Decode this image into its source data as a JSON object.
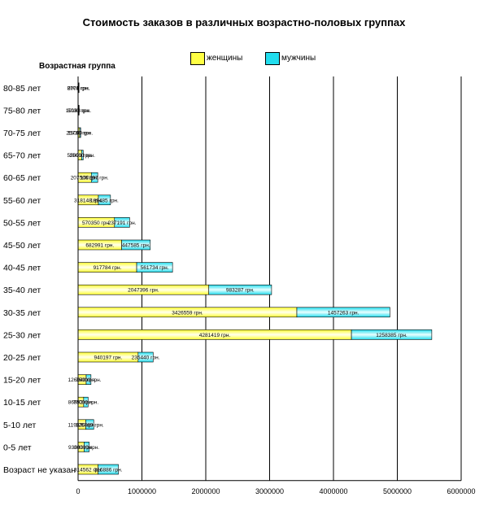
{
  "chart_data": {
    "type": "bar",
    "orientation": "horizontal",
    "stacked": true,
    "title": "Стоимость заказов в различных возрастно-половых группах",
    "ylabel": "Возрастная группа",
    "xlabel": "",
    "xlim": [
      0,
      6000000
    ],
    "x_ticks": [
      "0",
      "1000000",
      "2000000",
      "3000000",
      "4000000",
      "5000000",
      "6000000"
    ],
    "grid": true,
    "legend_position": "top",
    "value_unit": "грн.",
    "categories": [
      "80-85 лет",
      "75-80 лет",
      "70-75 лет",
      "65-70 лет",
      "60-65 лет",
      "55-60 лет",
      "50-55 лет",
      "45-50 лет",
      "40-45 лет",
      "35-40 лет",
      "30-35 лет",
      "25-30 лет",
      "20-25 лет",
      "15-20 лет",
      "10-15 лет",
      "5-10 лет",
      "0-5 лет",
      "Возраст не указан"
    ],
    "series": [
      {
        "name": "женщины",
        "color": "#ffff44",
        "values": [
          8771,
          10163,
          25730,
          55091,
          207506,
          318148,
          570350,
          682991,
          917784,
          2047396,
          3426559,
          4281419,
          940197,
          126940,
          86992,
          119830,
          93383,
          314562
        ]
      },
      {
        "name": "мужчины",
        "color": "#22ddee",
        "values": [
          2000,
          5000,
          15000,
          25000,
          100297,
          189485,
          237191,
          447585,
          561734,
          983287,
          1457263,
          1258385,
          235440,
          75000,
          70000,
          125089,
          80000,
          316886
        ]
      }
    ]
  }
}
